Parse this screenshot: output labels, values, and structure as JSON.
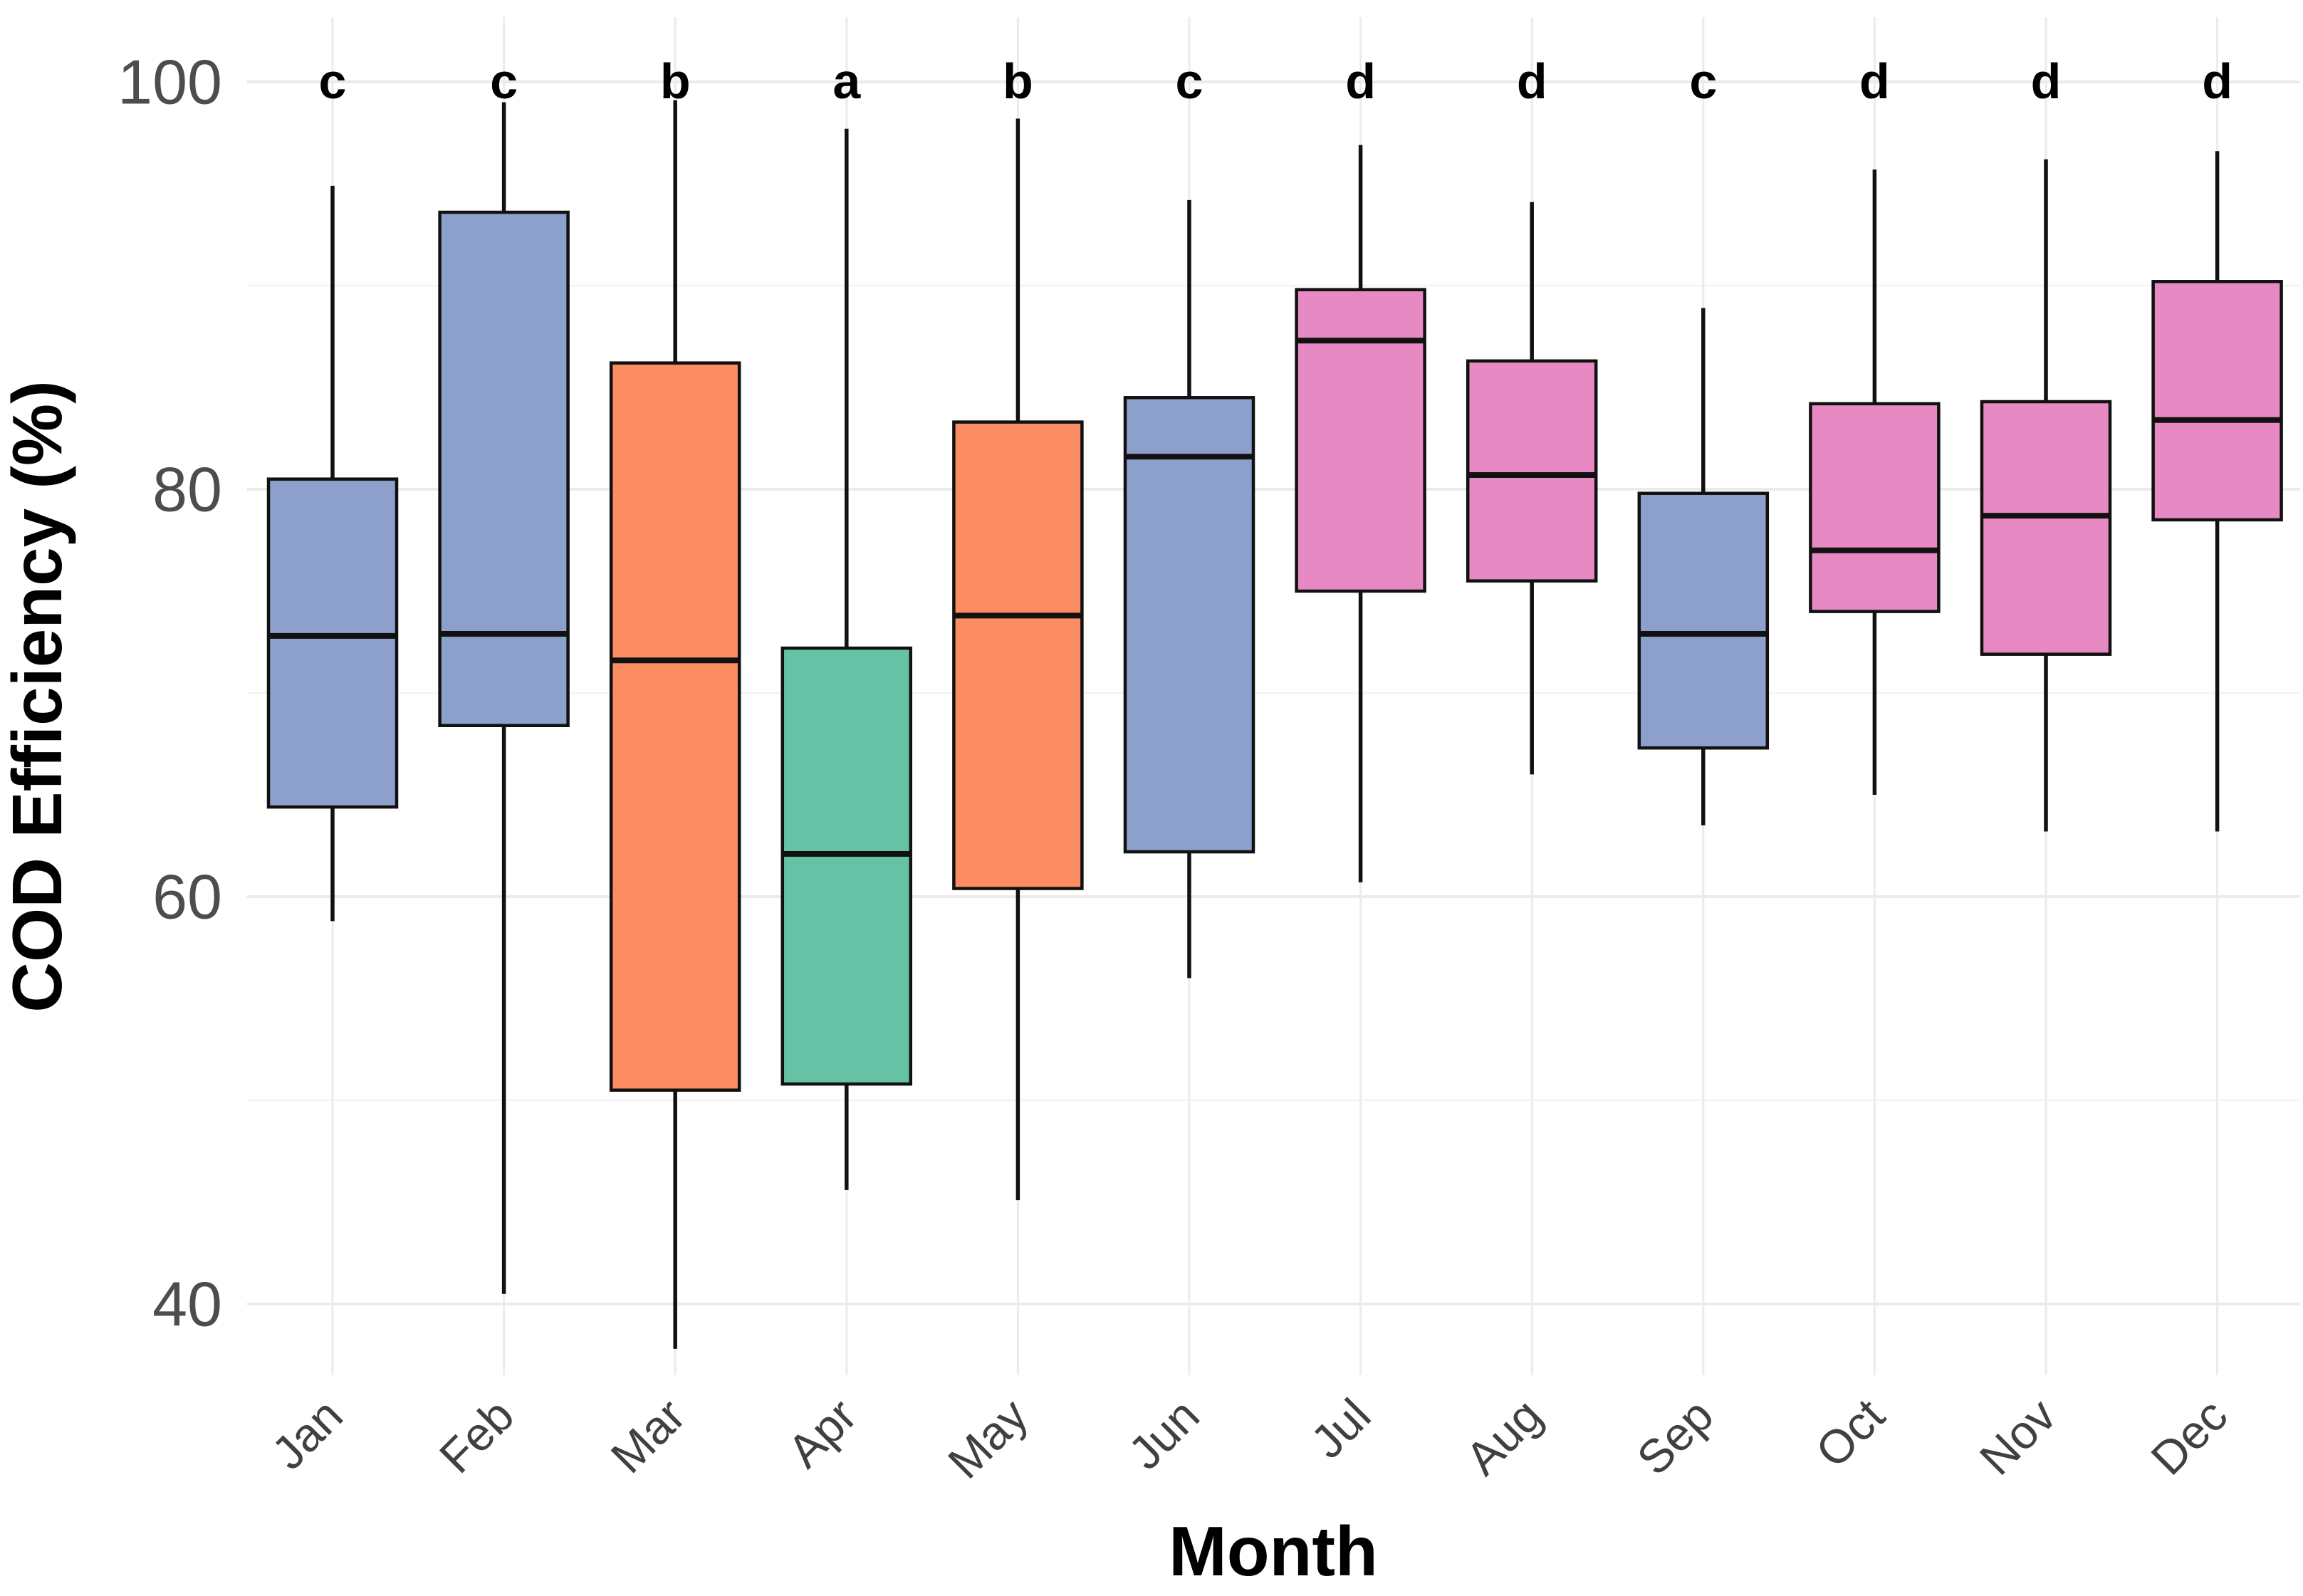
{
  "figure": {
    "kind": "monthly-boxplot-figure",
    "background": "#ffffff"
  },
  "colors": {
    "group_blue": "#8DA0CB",
    "group_orange": "#FC8D62",
    "group_green": "#66C2A5",
    "group_pink": "#E78AC3",
    "box_stroke": "#111111",
    "grid_major": "#EBEBEB",
    "grid_minor": "#F4F4F4",
    "tick_text": "#4D4D4D",
    "title_text": "#000000"
  },
  "chart_data": {
    "type": "boxplot",
    "title": "",
    "xlabel": "Month",
    "ylabel": "COD Efficiency (%)",
    "ylim": [
      36.5,
      103
    ],
    "yticks": [
      40,
      60,
      80,
      100
    ],
    "minor_yticks": [
      50,
      70,
      90
    ],
    "grid": true,
    "legend_position": "none",
    "categories": [
      "Jan",
      "Feb",
      "Mar",
      "Apr",
      "May",
      "Jun",
      "Jul",
      "Aug",
      "Sep",
      "Oct",
      "Nov",
      "Dec"
    ],
    "series": [
      {
        "month": "Jan",
        "group_letter": "c",
        "color": "#8DA0CB",
        "whisker_low": 58.8,
        "q1": 64.4,
        "median": 72.8,
        "q3": 80.5,
        "whisker_high": 94.9
      },
      {
        "month": "Feb",
        "group_letter": "c",
        "color": "#8DA0CB",
        "whisker_low": 40.5,
        "q1": 68.4,
        "median": 72.9,
        "q3": 93.6,
        "whisker_high": 99.0
      },
      {
        "month": "Mar",
        "group_letter": "b",
        "color": "#FC8D62",
        "whisker_low": 37.8,
        "q1": 50.5,
        "median": 71.6,
        "q3": 86.2,
        "whisker_high": 99.1
      },
      {
        "month": "Apr",
        "group_letter": "a",
        "color": "#66C2A5",
        "whisker_low": 45.6,
        "q1": 50.8,
        "median": 62.1,
        "q3": 72.2,
        "whisker_high": 97.7
      },
      {
        "month": "May",
        "group_letter": "b",
        "color": "#FC8D62",
        "whisker_low": 45.1,
        "q1": 60.4,
        "median": 73.8,
        "q3": 83.3,
        "whisker_high": 98.2
      },
      {
        "month": "Jun",
        "group_letter": "c",
        "color": "#8DA0CB",
        "whisker_low": 56.0,
        "q1": 62.2,
        "median": 81.6,
        "q3": 84.5,
        "whisker_high": 94.2
      },
      {
        "month": "Jul",
        "group_letter": "d",
        "color": "#E78AC3",
        "whisker_low": 60.7,
        "q1": 75.0,
        "median": 87.3,
        "q3": 89.8,
        "whisker_high": 96.9
      },
      {
        "month": "Aug",
        "group_letter": "d",
        "color": "#E78AC3",
        "whisker_low": 66.0,
        "q1": 75.5,
        "median": 80.7,
        "q3": 86.3,
        "whisker_high": 94.1
      },
      {
        "month": "Sep",
        "group_letter": "c",
        "color": "#8DA0CB",
        "whisker_low": 63.5,
        "q1": 67.3,
        "median": 72.9,
        "q3": 79.8,
        "whisker_high": 88.9
      },
      {
        "month": "Oct",
        "group_letter": "d",
        "color": "#E78AC3",
        "whisker_low": 65.0,
        "q1": 74.0,
        "median": 77.0,
        "q3": 84.2,
        "whisker_high": 95.7
      },
      {
        "month": "Nov",
        "group_letter": "d",
        "color": "#E78AC3",
        "whisker_low": 63.2,
        "q1": 71.9,
        "median": 78.7,
        "q3": 84.3,
        "whisker_high": 96.2
      },
      {
        "month": "Dec",
        "group_letter": "d",
        "color": "#E78AC3",
        "whisker_low": 63.2,
        "q1": 78.5,
        "median": 83.4,
        "q3": 90.2,
        "whisker_high": 96.6
      }
    ]
  }
}
